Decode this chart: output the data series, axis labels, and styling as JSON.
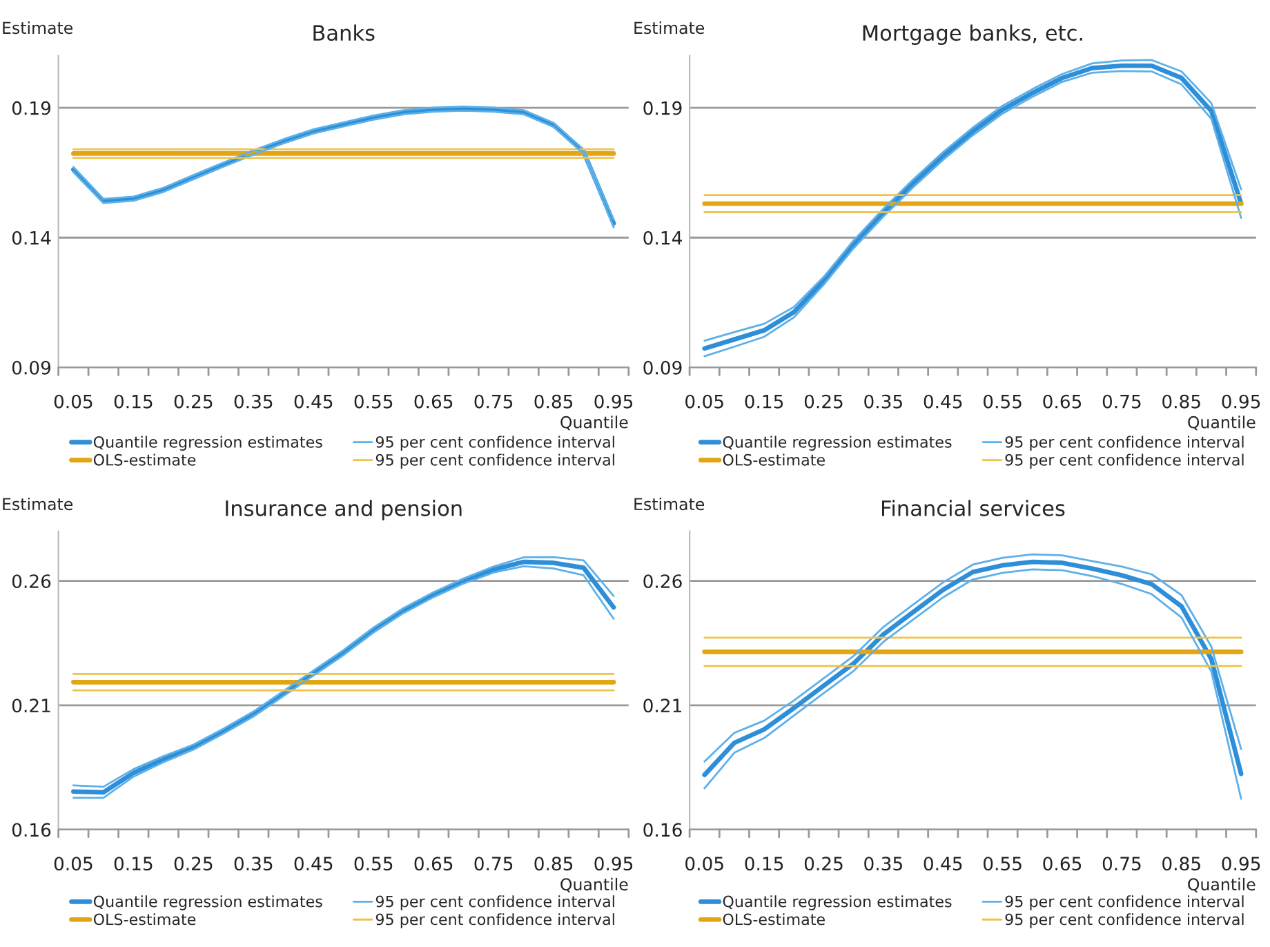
{
  "chart_data": [
    {
      "type": "line",
      "title": "Banks",
      "ylabel": "Estimate",
      "xlabel": "Quantile",
      "categories": [
        "0.05",
        null,
        "0.15",
        null,
        "0.25",
        null,
        "0.35",
        null,
        "0.45",
        null,
        "0.55",
        null,
        "0.65",
        null,
        "0.75",
        null,
        "0.85",
        null,
        "0.95"
      ],
      "ylim": [
        0.09,
        0.21
      ],
      "yticks": [
        0.09,
        0.14,
        0.19
      ],
      "grid": "y",
      "legend": "bottom",
      "series": [
        {
          "name": "Quantile regression estimates",
          "color": "#2e8fd8",
          "values": [
            0.1662,
            0.1541,
            0.155,
            0.1584,
            0.1633,
            0.1681,
            0.1728,
            0.1771,
            0.1809,
            0.1836,
            0.1862,
            0.1883,
            0.1893,
            0.1897,
            0.1893,
            0.1883,
            0.1834,
            0.1731,
            0.1455
          ]
        },
        {
          "name": "OLS-estimate",
          "color": "#e2a614",
          "values": [
            0.1724,
            0.1724,
            0.1724,
            0.1724,
            0.1724,
            0.1724,
            0.1724,
            0.1724,
            0.1724,
            0.1724,
            0.1724,
            0.1724,
            0.1724,
            0.1724,
            0.1724,
            0.1724,
            0.1724,
            0.1724,
            0.1724
          ]
        },
        {
          "name": "95 per cent confidence interval",
          "color": "#5db0e8",
          "values": [
            0.1672,
            0.1549,
            0.1558,
            0.1592,
            0.1641,
            0.1689,
            0.1736,
            0.1779,
            0.1817,
            0.1844,
            0.187,
            0.1891,
            0.1901,
            0.1905,
            0.1901,
            0.1891,
            0.1842,
            0.1739,
            0.147
          ]
        },
        {
          "name": "95 per cent confidence interval",
          "color": "#efc24a",
          "values": [
            0.174,
            0.174,
            0.174,
            0.174,
            0.174,
            0.174,
            0.174,
            0.174,
            0.174,
            0.174,
            0.174,
            0.174,
            0.174,
            0.174,
            0.174,
            0.174,
            0.174,
            0.174,
            0.174
          ]
        },
        {
          "color": "#5db0e8",
          "values": [
            0.1652,
            0.1533,
            0.1542,
            0.1576,
            0.1625,
            0.1673,
            0.172,
            0.1763,
            0.1801,
            0.1828,
            0.1854,
            0.1875,
            0.1885,
            0.1889,
            0.1885,
            0.1875,
            0.1826,
            0.1723,
            0.144
          ]
        },
        {
          "color": "#efc24a",
          "values": [
            0.1707,
            0.1707,
            0.1707,
            0.1707,
            0.1707,
            0.1707,
            0.1707,
            0.1707,
            0.1707,
            0.1707,
            0.1707,
            0.1707,
            0.1707,
            0.1707,
            0.1707,
            0.1707,
            0.1707,
            0.1707,
            0.1707
          ]
        }
      ]
    },
    {
      "type": "line",
      "title": "Mortgage banks, etc.",
      "ylabel": "Estimate",
      "xlabel": "Quantile",
      "categories": [
        "0.05",
        null,
        "0.15",
        null,
        "0.25",
        null,
        "0.35",
        null,
        "0.45",
        null,
        "0.55",
        null,
        "0.65",
        null,
        "0.75",
        null,
        "0.85",
        null,
        "0.95"
      ],
      "ylim": [
        0.09,
        0.21
      ],
      "yticks": [
        0.09,
        0.14,
        0.19
      ],
      "grid": "y",
      "legend": "bottom",
      "series": [
        {
          "name": "Quantile regression estimates",
          "color": "#2e8fd8",
          "values": [
            0.0973,
            0.1008,
            0.1043,
            0.1113,
            0.1234,
            0.1374,
            0.1496,
            0.1609,
            0.1714,
            0.1809,
            0.1893,
            0.1957,
            0.2015,
            0.2053,
            0.2062,
            0.2062,
            0.2015,
            0.1888,
            0.1531
          ]
        },
        {
          "name": "OLS-estimate",
          "color": "#e2a614",
          "values": [
            0.1531,
            0.1531,
            0.1531,
            0.1531,
            0.1531,
            0.1531,
            0.1531,
            0.1531,
            0.1531,
            0.1531,
            0.1531,
            0.1531,
            0.1531,
            0.1531,
            0.1531,
            0.1531,
            0.1531,
            0.1531,
            0.1531
          ]
        },
        {
          "name": "95 per cent confidence interval",
          "color": "#5db0e8",
          "values": [
            0.1003,
            0.1036,
            0.1068,
            0.1133,
            0.1249,
            0.1389,
            0.1511,
            0.1624,
            0.1729,
            0.1824,
            0.1908,
            0.1972,
            0.203,
            0.2071,
            0.2082,
            0.2084,
            0.204,
            0.1918,
            0.1586
          ]
        },
        {
          "name": "95 per cent confidence interval",
          "color": "#efc24a",
          "values": [
            0.1564,
            0.1564,
            0.1564,
            0.1564,
            0.1564,
            0.1564,
            0.1564,
            0.1564,
            0.1564,
            0.1564,
            0.1564,
            0.1564,
            0.1564,
            0.1564,
            0.1564,
            0.1564,
            0.1564,
            0.1564,
            0.1564
          ]
        },
        {
          "color": "#5db0e8",
          "values": [
            0.0943,
            0.098,
            0.1018,
            0.1093,
            0.1219,
            0.1359,
            0.1481,
            0.1594,
            0.1699,
            0.1794,
            0.1878,
            0.1942,
            0.2,
            0.2035,
            0.2042,
            0.204,
            0.199,
            0.1858,
            0.1476
          ]
        },
        {
          "color": "#efc24a",
          "values": [
            0.1498,
            0.1498,
            0.1498,
            0.1498,
            0.1498,
            0.1498,
            0.1498,
            0.1498,
            0.1498,
            0.1498,
            0.1498,
            0.1498,
            0.1498,
            0.1498,
            0.1498,
            0.1498,
            0.1498,
            0.1498,
            0.1498
          ]
        }
      ]
    },
    {
      "type": "line",
      "title": "Insurance and pension",
      "ylabel": "Estimate",
      "xlabel": "Quantile",
      "categories": [
        "0.05",
        null,
        "0.15",
        null,
        "0.25",
        null,
        "0.35",
        null,
        "0.45",
        null,
        "0.55",
        null,
        "0.65",
        null,
        "0.75",
        null,
        "0.85",
        null,
        "0.95"
      ],
      "ylim": [
        0.16,
        0.28
      ],
      "yticks": [
        0.16,
        0.21,
        0.26
      ],
      "grid": "y",
      "legend": "bottom",
      "series": [
        {
          "name": "Quantile regression estimates",
          "color": "#2e8fd8",
          "values": [
            0.1753,
            0.175,
            0.1828,
            0.1883,
            0.1932,
            0.1996,
            0.2065,
            0.2147,
            0.223,
            0.2312,
            0.2403,
            0.2481,
            0.2545,
            0.26,
            0.2646,
            0.2677,
            0.2673,
            0.2653,
            0.2494
          ]
        },
        {
          "name": "OLS-estimate",
          "color": "#e2a614",
          "values": [
            0.2193,
            0.2193,
            0.2193,
            0.2193,
            0.2193,
            0.2193,
            0.2193,
            0.2193,
            0.2193,
            0.2193,
            0.2193,
            0.2193,
            0.2193,
            0.2193,
            0.2193,
            0.2193,
            0.2193,
            0.2193,
            0.2193
          ]
        },
        {
          "name": "95 per cent confidence interval",
          "color": "#5db0e8",
          "values": [
            0.1778,
            0.1772,
            0.1843,
            0.1895,
            0.1942,
            0.2006,
            0.2075,
            0.2157,
            0.224,
            0.2322,
            0.2413,
            0.2491,
            0.2555,
            0.261,
            0.2658,
            0.2695,
            0.2696,
            0.2683,
            0.254
          ]
        },
        {
          "name": "95 per cent confidence interval",
          "color": "#efc24a",
          "values": [
            0.2226,
            0.2226,
            0.2226,
            0.2226,
            0.2226,
            0.2226,
            0.2226,
            0.2226,
            0.2226,
            0.2226,
            0.2226,
            0.2226,
            0.2226,
            0.2226,
            0.2226,
            0.2226,
            0.2226,
            0.2226,
            0.2226
          ]
        },
        {
          "color": "#5db0e8",
          "values": [
            0.1728,
            0.1728,
            0.1813,
            0.1871,
            0.1922,
            0.1986,
            0.2055,
            0.2137,
            0.222,
            0.2302,
            0.2393,
            0.2471,
            0.2535,
            0.259,
            0.2634,
            0.2659,
            0.265,
            0.2623,
            0.2448
          ]
        },
        {
          "color": "#efc24a",
          "values": [
            0.216,
            0.216,
            0.216,
            0.216,
            0.216,
            0.216,
            0.216,
            0.216,
            0.216,
            0.216,
            0.216,
            0.216,
            0.216,
            0.216,
            0.216,
            0.216,
            0.216,
            0.216,
            0.216
          ]
        }
      ]
    },
    {
      "type": "line",
      "title": "Financial services",
      "ylabel": "Estimate",
      "xlabel": "Quantile",
      "categories": [
        "0.05",
        null,
        "0.15",
        null,
        "0.25",
        null,
        "0.35",
        null,
        "0.45",
        null,
        "0.55",
        null,
        "0.65",
        null,
        "0.75",
        null,
        "0.85",
        null,
        "0.95"
      ],
      "ylim": [
        0.16,
        0.28
      ],
      "yticks": [
        0.16,
        0.21,
        0.26
      ],
      "grid": "y",
      "legend": "bottom",
      "series": [
        {
          "name": "Quantile regression estimates",
          "color": "#2e8fd8",
          "values": [
            0.182,
            0.1949,
            0.2003,
            0.2089,
            0.2179,
            0.2268,
            0.2385,
            0.2475,
            0.2564,
            0.2636,
            0.2663,
            0.2677,
            0.2673,
            0.265,
            0.2623,
            0.2587,
            0.2498,
            0.2286,
            0.1824
          ]
        },
        {
          "name": "OLS-estimate",
          "color": "#e2a614",
          "values": [
            0.2315,
            0.2315,
            0.2315,
            0.2315,
            0.2315,
            0.2315,
            0.2315,
            0.2315,
            0.2315,
            0.2315,
            0.2315,
            0.2315,
            0.2315,
            0.2315,
            0.2315,
            0.2315,
            0.2315,
            0.2315,
            0.2315
          ]
        },
        {
          "name": "95 per cent confidence interval",
          "color": "#5db0e8",
          "values": [
            0.1874,
            0.1989,
            0.2038,
            0.2119,
            0.2209,
            0.2298,
            0.2415,
            0.2505,
            0.2594,
            0.2666,
            0.2693,
            0.2707,
            0.2703,
            0.268,
            0.2658,
            0.2627,
            0.2543,
            0.2336,
            0.1924
          ]
        },
        {
          "name": "95 per cent confidence interval",
          "color": "#efc24a",
          "values": [
            0.2372,
            0.2372,
            0.2372,
            0.2372,
            0.2372,
            0.2372,
            0.2372,
            0.2372,
            0.2372,
            0.2372,
            0.2372,
            0.2372,
            0.2372,
            0.2372,
            0.2372,
            0.2372,
            0.2372,
            0.2372,
            0.2372
          ]
        },
        {
          "color": "#5db0e8",
          "values": [
            0.1766,
            0.1909,
            0.1968,
            0.2059,
            0.2149,
            0.2238,
            0.2355,
            0.2445,
            0.2534,
            0.2606,
            0.2633,
            0.2647,
            0.2643,
            0.262,
            0.2588,
            0.2547,
            0.2453,
            0.2236,
            0.1724
          ]
        },
        {
          "color": "#efc24a",
          "values": [
            0.2258,
            0.2258,
            0.2258,
            0.2258,
            0.2258,
            0.2258,
            0.2258,
            0.2258,
            0.2258,
            0.2258,
            0.2258,
            0.2258,
            0.2258,
            0.2258,
            0.2258,
            0.2258,
            0.2258,
            0.2258,
            0.2258
          ]
        }
      ]
    }
  ]
}
